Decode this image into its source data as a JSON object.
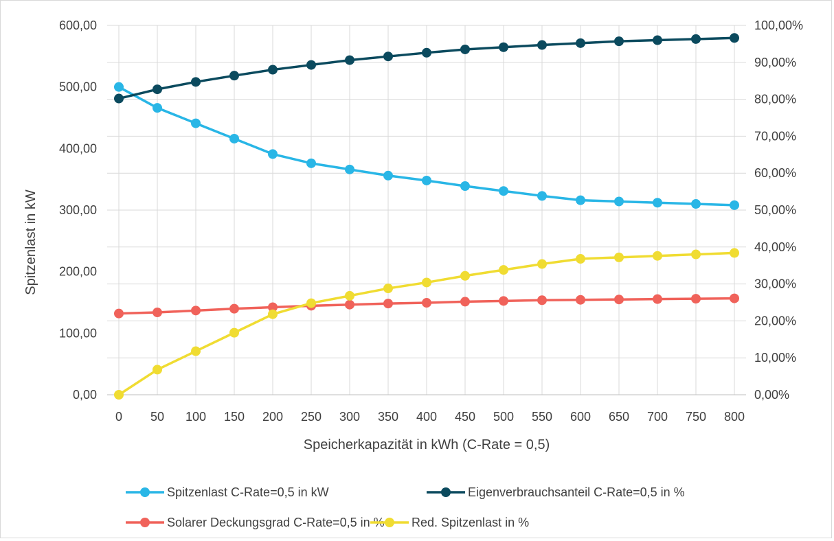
{
  "chart_data": {
    "type": "line",
    "title": "",
    "xlabel": "Speicherkapazität in kWh (C-Rate = 0,5)",
    "ylabel": "Spitzenlast in kW",
    "y2label": "",
    "categories": [
      "0",
      "50",
      "100",
      "150",
      "200",
      "250",
      "300",
      "350",
      "400",
      "450",
      "500",
      "550",
      "600",
      "650",
      "700",
      "750",
      "800"
    ],
    "ylim": [
      0,
      600
    ],
    "y2lim": [
      0,
      1
    ],
    "y_ticks": [
      "0,00",
      "100,00",
      "200,00",
      "300,00",
      "400,00",
      "500,00",
      "600,00"
    ],
    "y2_ticks": [
      "0,00%",
      "10,00%",
      "20,00%",
      "30,00%",
      "40,00%",
      "50,00%",
      "60,00%",
      "70,00%",
      "80,00%",
      "90,00%",
      "100,00%"
    ],
    "grid": true,
    "legend_position": "bottom",
    "series": [
      {
        "name": "Spitzenlast C-Rate=0,5 in kW",
        "axis": "left",
        "color": "#29b6e6",
        "values": [
          500,
          466,
          441,
          416,
          391,
          376,
          366,
          356,
          348,
          339,
          331,
          323,
          316,
          314,
          312,
          310,
          308
        ]
      },
      {
        "name": "Eigenverbrauchsanteil C-Rate=0,5 in %",
        "axis": "right",
        "color": "#0b4a5e",
        "values": [
          0.802,
          0.827,
          0.847,
          0.864,
          0.88,
          0.893,
          0.906,
          0.916,
          0.926,
          0.935,
          0.941,
          0.947,
          0.952,
          0.957,
          0.96,
          0.963,
          0.966
        ]
      },
      {
        "name": "Solarer Deckungsgrad C-Rate=0,5 in %",
        "axis": "right",
        "color": "#f0625a",
        "values": [
          0.22,
          0.223,
          0.228,
          0.233,
          0.237,
          0.241,
          0.244,
          0.247,
          0.249,
          0.252,
          0.254,
          0.256,
          0.257,
          0.258,
          0.259,
          0.26,
          0.261
        ]
      },
      {
        "name": "Red. Spitzenlast in %",
        "axis": "right",
        "color": "#f0dc32",
        "values": [
          0.0,
          0.068,
          0.118,
          0.168,
          0.218,
          0.248,
          0.268,
          0.288,
          0.304,
          0.322,
          0.338,
          0.354,
          0.368,
          0.372,
          0.376,
          0.38,
          0.384
        ]
      }
    ]
  }
}
